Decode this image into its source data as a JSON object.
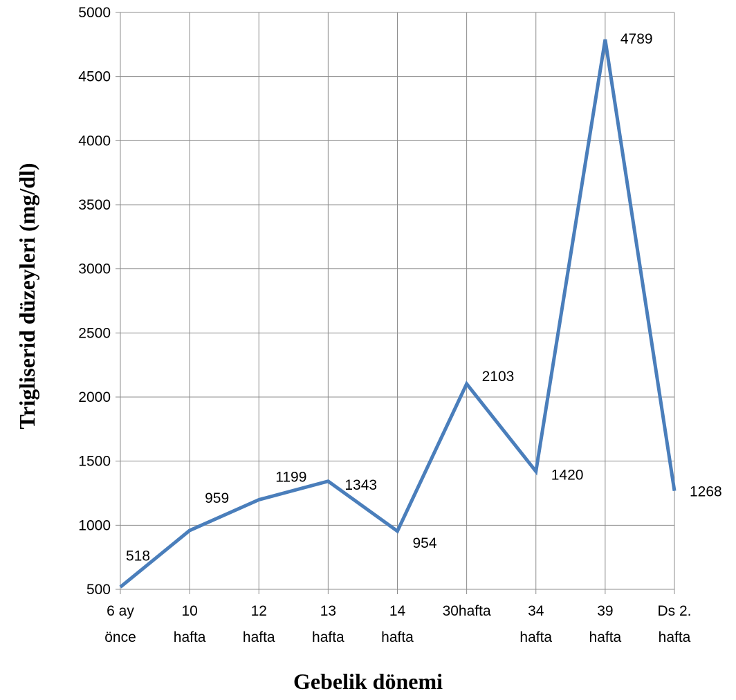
{
  "chart_data": {
    "type": "line",
    "categories": [
      [
        "6 ay",
        "önce"
      ],
      [
        "10",
        "hafta"
      ],
      [
        "12",
        "hafta"
      ],
      [
        "13",
        "hafta"
      ],
      [
        "14",
        "hafta"
      ],
      [
        "30hafta"
      ],
      [
        "34",
        "hafta"
      ],
      [
        "39",
        "hafta"
      ],
      [
        "Ds 2.",
        "hafta"
      ]
    ],
    "series": [
      {
        "values": [
          518,
          959,
          1199,
          1343,
          954,
          2103,
          1420,
          4789,
          1268
        ]
      }
    ],
    "xlabel": "Gebelik dönemi",
    "ylabel": "Trigliserid  düzeyleri  (mg/dl)",
    "ylim": [
      500,
      5000
    ],
    "yticks": [
      500,
      1000,
      1500,
      2000,
      2500,
      3000,
      3500,
      4000,
      4500,
      5000
    ],
    "grid": true,
    "legend": "none",
    "colors": {
      "line": "#4a7ebb"
    }
  }
}
